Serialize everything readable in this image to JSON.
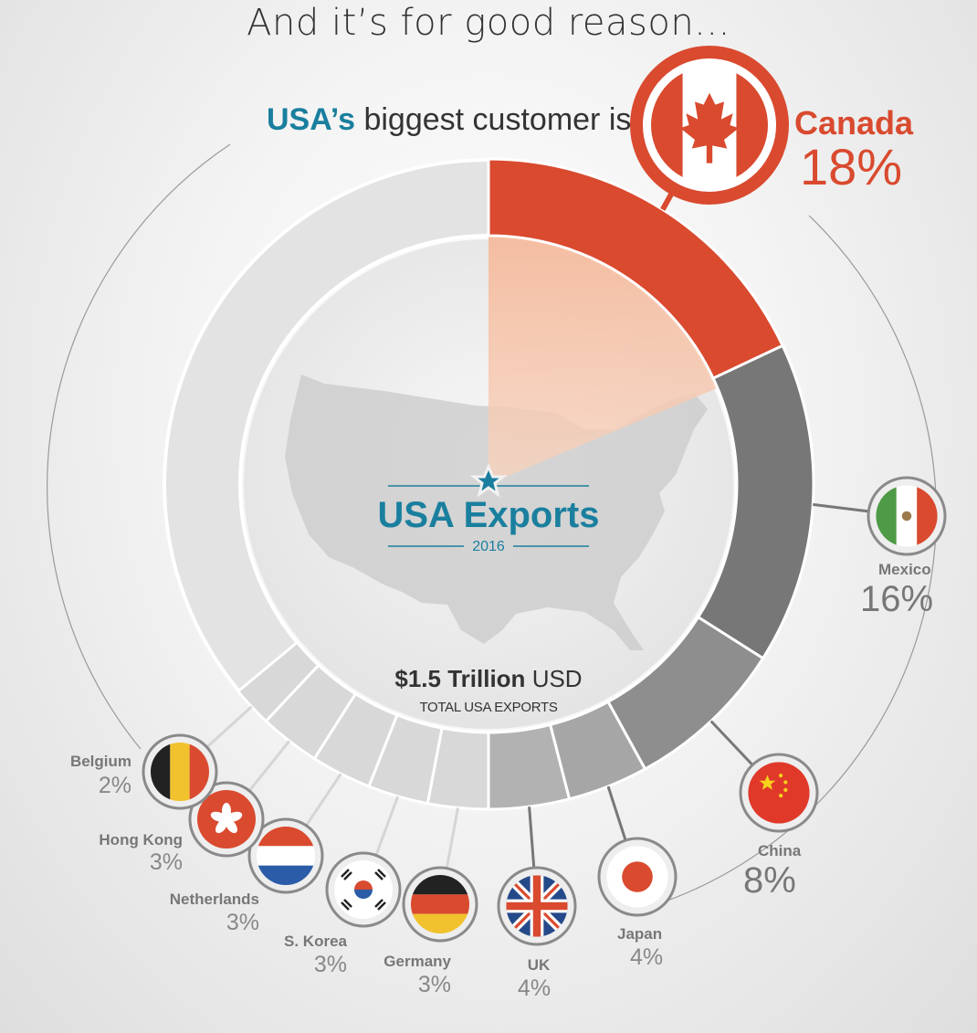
{
  "headline": "And it’s for good reason...",
  "subline": {
    "brand": "USA’s",
    "text": "biggest customer is"
  },
  "center": {
    "title": "USA Exports",
    "year": "2016",
    "total_value": "$1.5 Trillion",
    "total_unit": "USD",
    "total_label": "TOTAL USA EXPORTS"
  },
  "colors": {
    "accent": "#d94a2f",
    "brand": "#1a7f9e",
    "ring_gray": "#e3e3e3"
  },
  "chart_data": {
    "type": "pie",
    "unit": "%",
    "slices": [
      {
        "name": "Canada",
        "value": 18,
        "label": "18%",
        "icon": "canada-flag-icon"
      },
      {
        "name": "Mexico",
        "value": 16,
        "label": "16%",
        "icon": "mexico-flag-icon"
      },
      {
        "name": "China",
        "value": 8,
        "label": "8%",
        "icon": "china-flag-icon"
      },
      {
        "name": "Japan",
        "value": 4,
        "label": "4%",
        "icon": "japan-flag-icon"
      },
      {
        "name": "UK",
        "value": 4,
        "label": "4%",
        "icon": "uk-flag-icon"
      },
      {
        "name": "Germany",
        "value": 3,
        "label": "3%",
        "icon": "germany-flag-icon"
      },
      {
        "name": "S. Korea",
        "value": 3,
        "label": "3%",
        "icon": "south-korea-flag-icon"
      },
      {
        "name": "Netherlands",
        "value": 3,
        "label": "3%",
        "icon": "netherlands-flag-icon"
      },
      {
        "name": "Hong Kong",
        "value": 3,
        "label": "3%",
        "icon": "hong-kong-flag-icon"
      },
      {
        "name": "Belgium",
        "value": 2,
        "label": "2%",
        "icon": "belgium-flag-icon"
      }
    ]
  }
}
